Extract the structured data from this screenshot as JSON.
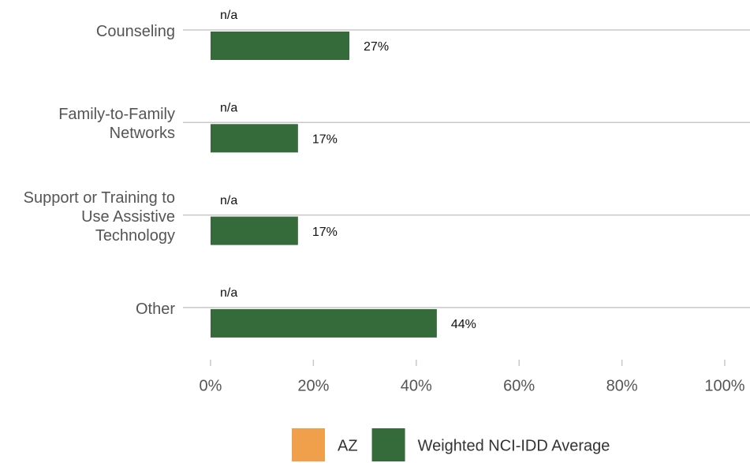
{
  "chart_data": {
    "type": "bar",
    "orientation": "horizontal",
    "categories": [
      "Counseling",
      "Family-to-Family Networks",
      "Support or Training to Use Assistive Technology",
      "Other"
    ],
    "series": [
      {
        "name": "AZ",
        "color": "#f0a04b",
        "values": [
          null,
          null,
          null,
          null
        ],
        "value_labels": [
          "n/a",
          "n/a",
          "n/a",
          "n/a"
        ]
      },
      {
        "name": "Weighted NCI-IDD Average",
        "color": "#356a3a",
        "values": [
          27,
          17,
          17,
          44
        ],
        "value_labels": [
          "27%",
          "17%",
          "17%",
          "44%"
        ]
      }
    ],
    "xlim": [
      0,
      100
    ],
    "xticks": [
      {
        "value": 0,
        "label": "0%"
      },
      {
        "value": 20,
        "label": "20%"
      },
      {
        "value": 40,
        "label": "40%"
      },
      {
        "value": 60,
        "label": "60%"
      },
      {
        "value": 80,
        "label": "80%"
      },
      {
        "value": 100,
        "label": "100%"
      }
    ],
    "legend": "bottom"
  }
}
